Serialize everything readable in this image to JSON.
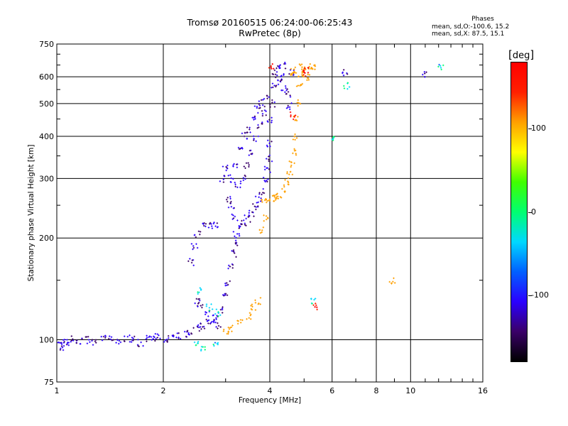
{
  "chart_data": {
    "type": "scatter",
    "title": "Tromsø 20160515 06:24:00-06:25:43",
    "subtitle": "RwPretec (8p)",
    "xlabel": "Frequency [MHz]",
    "ylabel": "Stationary phase Virtual Height [km]",
    "x_scale": "log",
    "y_scale": "log",
    "xlim": [
      1,
      16
    ],
    "ylim": [
      75,
      750
    ],
    "x_ticks": [
      1,
      2,
      4,
      6,
      8,
      10,
      16
    ],
    "y_ticks": [
      75,
      100,
      200,
      300,
      400,
      500,
      600,
      750
    ],
    "grid": true,
    "series": [
      {
        "name": "blue/purple echoes",
        "color_range_deg": [
          -150,
          -90
        ],
        "points": [
          [
            1.02,
            97
          ],
          [
            1.03,
            95
          ],
          [
            1.05,
            99
          ],
          [
            1.08,
            98
          ],
          [
            1.12,
            100
          ],
          [
            1.16,
            99
          ],
          [
            1.22,
            100
          ],
          [
            1.28,
            98
          ],
          [
            1.35,
            101
          ],
          [
            1.42,
            100
          ],
          [
            1.5,
            99
          ],
          [
            1.58,
            101
          ],
          [
            1.65,
            100
          ],
          [
            1.72,
            98
          ],
          [
            1.8,
            101
          ],
          [
            1.86,
            100
          ],
          [
            1.93,
            102
          ],
          [
            2.02,
            101
          ],
          [
            2.1,
            102
          ],
          [
            2.2,
            103
          ],
          [
            2.3,
            104
          ],
          [
            2.4,
            106
          ],
          [
            2.5,
            108
          ],
          [
            2.6,
            110
          ],
          [
            2.7,
            112
          ],
          [
            2.8,
            116
          ],
          [
            2.9,
            123
          ],
          [
            2.98,
            135
          ],
          [
            3.04,
            148
          ],
          [
            3.1,
            165
          ],
          [
            3.15,
            180
          ],
          [
            3.18,
            192
          ],
          [
            3.22,
            205
          ],
          [
            3.3,
            216
          ],
          [
            3.38,
            222
          ],
          [
            3.46,
            228
          ],
          [
            3.55,
            236
          ],
          [
            3.63,
            248
          ],
          [
            3.72,
            260
          ],
          [
            3.8,
            276
          ],
          [
            3.88,
            295
          ],
          [
            3.95,
            318
          ],
          [
            3.99,
            345
          ],
          [
            4.0,
            380
          ],
          [
            4.02,
            450
          ],
          [
            4.06,
            500
          ],
          [
            4.1,
            560
          ],
          [
            4.15,
            610
          ],
          [
            4.2,
            640
          ],
          [
            4.3,
            600
          ],
          [
            4.4,
            560
          ],
          [
            4.5,
            530
          ],
          [
            4.55,
            490
          ],
          [
            4.6,
            620
          ],
          [
            4.35,
            650
          ],
          [
            4.25,
            580
          ],
          [
            3.9,
            520
          ],
          [
            3.8,
            500
          ],
          [
            3.7,
            480
          ],
          [
            3.6,
            450
          ],
          [
            3.5,
            420
          ],
          [
            3.4,
            400
          ],
          [
            3.3,
            370
          ],
          [
            3.2,
            330
          ],
          [
            3.1,
            300
          ],
          [
            3.05,
            260
          ],
          [
            3.0,
            320
          ],
          [
            2.95,
            300
          ],
          [
            2.6,
            220
          ],
          [
            2.7,
            218
          ],
          [
            2.8,
            219
          ],
          [
            2.5,
            205
          ],
          [
            2.45,
            190
          ],
          [
            2.4,
            170
          ],
          [
            3.12,
            250
          ],
          [
            3.18,
            230
          ],
          [
            3.25,
            285
          ],
          [
            3.35,
            300
          ],
          [
            3.45,
            330
          ],
          [
            3.55,
            360
          ],
          [
            3.65,
            395
          ],
          [
            3.75,
            430
          ],
          [
            3.85,
            470
          ],
          [
            2.85,
            110
          ],
          [
            2.75,
            115
          ],
          [
            2.65,
            120
          ],
          [
            2.55,
            126
          ],
          [
            2.5,
            130
          ],
          [
            6.5,
            615
          ],
          [
            10.9,
            610
          ]
        ]
      },
      {
        "name": "yellow echoes",
        "color_range_deg": [
          90,
          120
        ],
        "points": [
          [
            3.85,
            255
          ],
          [
            3.95,
            260
          ],
          [
            4.05,
            262
          ],
          [
            4.15,
            265
          ],
          [
            4.25,
            268
          ],
          [
            4.35,
            280
          ],
          [
            4.45,
            295
          ],
          [
            4.55,
            310
          ],
          [
            4.62,
            330
          ],
          [
            4.68,
            360
          ],
          [
            4.72,
            400
          ],
          [
            4.76,
            450
          ],
          [
            4.8,
            500
          ],
          [
            4.85,
            560
          ],
          [
            4.9,
            610
          ],
          [
            4.95,
            640
          ],
          [
            5.0,
            620
          ],
          [
            5.1,
            600
          ],
          [
            5.2,
            640
          ],
          [
            5.3,
            645
          ],
          [
            4.7,
            630
          ],
          [
            4.6,
            620
          ],
          [
            3.7,
            130
          ],
          [
            3.6,
            125
          ],
          [
            3.5,
            118
          ],
          [
            3.3,
            112
          ],
          [
            3.1,
            108
          ],
          [
            3.0,
            106
          ],
          [
            3.9,
            230
          ],
          [
            3.8,
            210
          ],
          [
            8.9,
            150
          ]
        ]
      },
      {
        "name": "cyan/green echoes",
        "color_range_deg": [
          -60,
          0
        ],
        "points": [
          [
            2.5,
            98
          ],
          [
            2.6,
            95
          ],
          [
            2.8,
            97
          ],
          [
            2.55,
            140
          ],
          [
            2.7,
            125
          ],
          [
            2.85,
            120
          ],
          [
            5.3,
            130
          ],
          [
            6.0,
            390
          ],
          [
            6.6,
            565
          ],
          [
            12.2,
            640
          ]
        ]
      },
      {
        "name": "red/orange echoes",
        "color_range_deg": [
          150,
          180
        ],
        "points": [
          [
            4.05,
            640
          ],
          [
            4.95,
            615
          ],
          [
            5.05,
            625
          ],
          [
            4.65,
            460
          ],
          [
            5.35,
            126
          ]
        ]
      }
    ]
  },
  "header": {
    "title": "Tromsø 20160515 06:24:00-06:25:43",
    "subtitle": "RwPretec (8p)"
  },
  "stats": {
    "title": "Phases",
    "line1": "mean, sd,O:-100.6, 15.2",
    "line2": "mean, sd,X:  87.5, 15.1"
  },
  "colorbar": {
    "unit": "deg",
    "ticks": [
      "100",
      "0",
      "-100"
    ],
    "tick_values": [
      100,
      0,
      -100
    ],
    "range": [
      -180,
      180
    ],
    "colors": [
      "#000000",
      "#3a0068",
      "#2a00ff",
      "#0060ff",
      "#00d8ff",
      "#00ff70",
      "#40ff00",
      "#ffff00",
      "#ffa000",
      "#ff2000",
      "#ff0000"
    ]
  }
}
